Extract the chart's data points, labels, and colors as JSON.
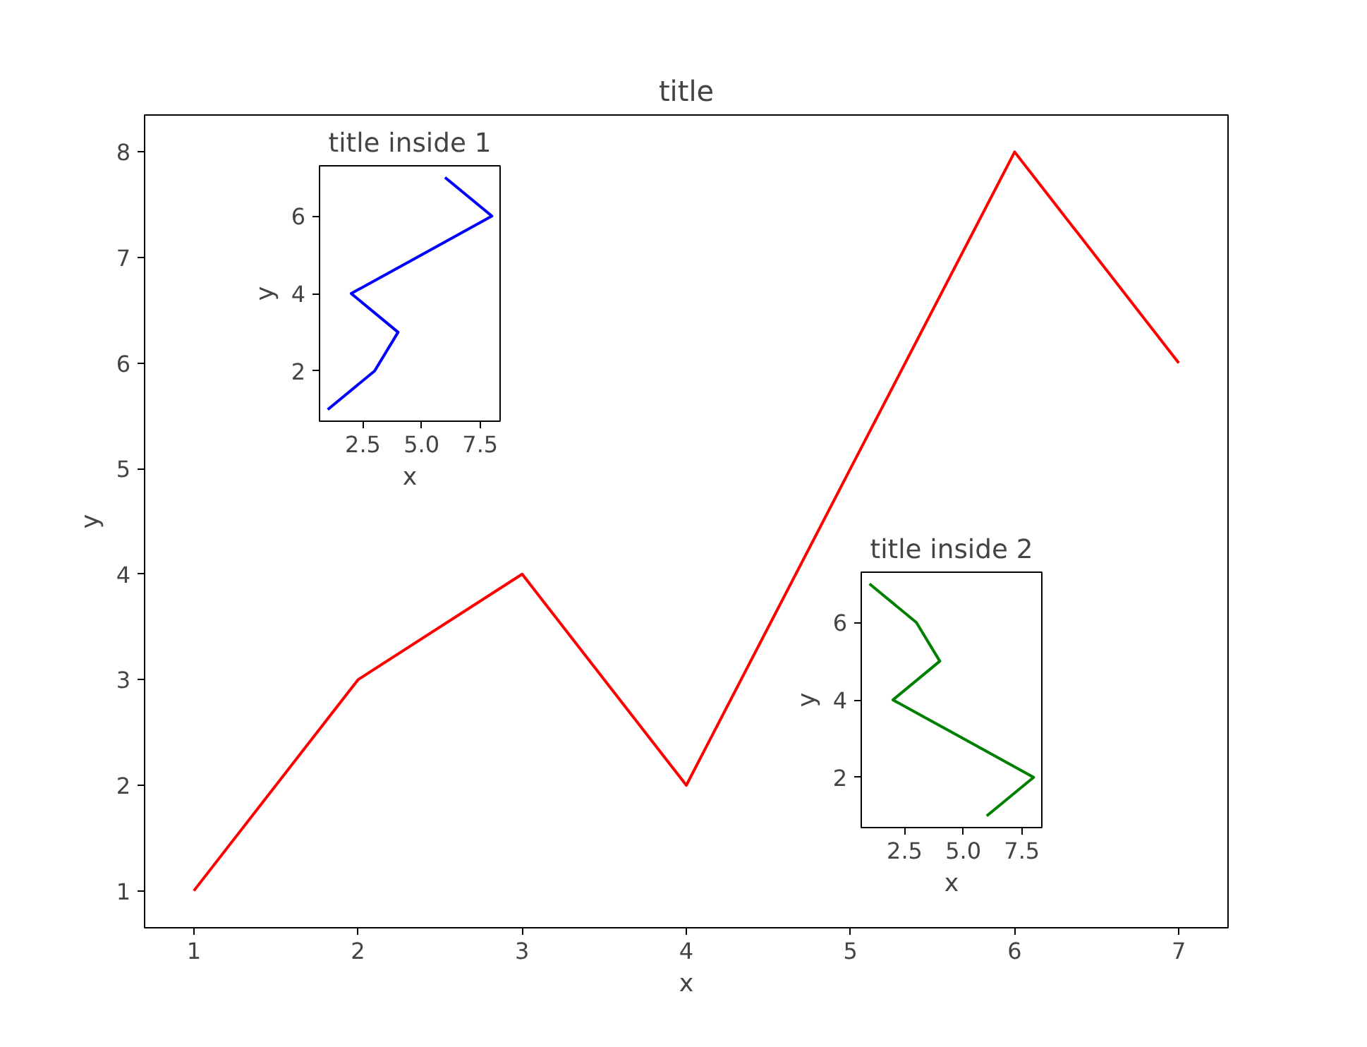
{
  "chart_data": [
    {
      "type": "line",
      "title": "title",
      "xlabel": "x",
      "ylabel": "y",
      "x": [
        1,
        2,
        3,
        4,
        5,
        6,
        7
      ],
      "series": [
        {
          "color": "#ff0000",
          "values": [
            1,
            3,
            4,
            2,
            5,
            8,
            6
          ]
        }
      ],
      "xlim": [
        0.7,
        7.3
      ],
      "ylim": [
        0.65,
        8.35
      ],
      "xticks": [
        1,
        2,
        3,
        4,
        5,
        6,
        7
      ],
      "yticks": [
        1,
        2,
        3,
        4,
        5,
        6,
        7,
        8
      ]
    },
    {
      "type": "line",
      "title": "title inside 1",
      "xlabel": "x",
      "ylabel": "y",
      "x": [
        1,
        3,
        4,
        2,
        5,
        8,
        6
      ],
      "series": [
        {
          "color": "#0000ff",
          "values": [
            1,
            2,
            3,
            4,
            5,
            6,
            7
          ]
        }
      ],
      "xlim": [
        0.65,
        8.35
      ],
      "ylim": [
        0.7,
        7.3
      ],
      "xticks": [
        2.5,
        {
          "value": 5,
          "label": "5.0"
        },
        7.5
      ],
      "yticks": [
        2,
        4,
        6
      ]
    },
    {
      "type": "line",
      "title": "title inside 2",
      "xlabel": "x",
      "ylabel": "y",
      "x": [
        6,
        8,
        5,
        2,
        4,
        3,
        1
      ],
      "series": [
        {
          "color": "#008000",
          "values": [
            1,
            2,
            3,
            4,
            5,
            6,
            7
          ]
        }
      ],
      "xlim": [
        0.65,
        8.35
      ],
      "ylim": [
        0.7,
        7.3
      ],
      "xticks": [
        2.5,
        {
          "value": 5,
          "label": "5.0"
        },
        7.5
      ],
      "yticks": [
        2,
        4,
        6
      ]
    }
  ]
}
